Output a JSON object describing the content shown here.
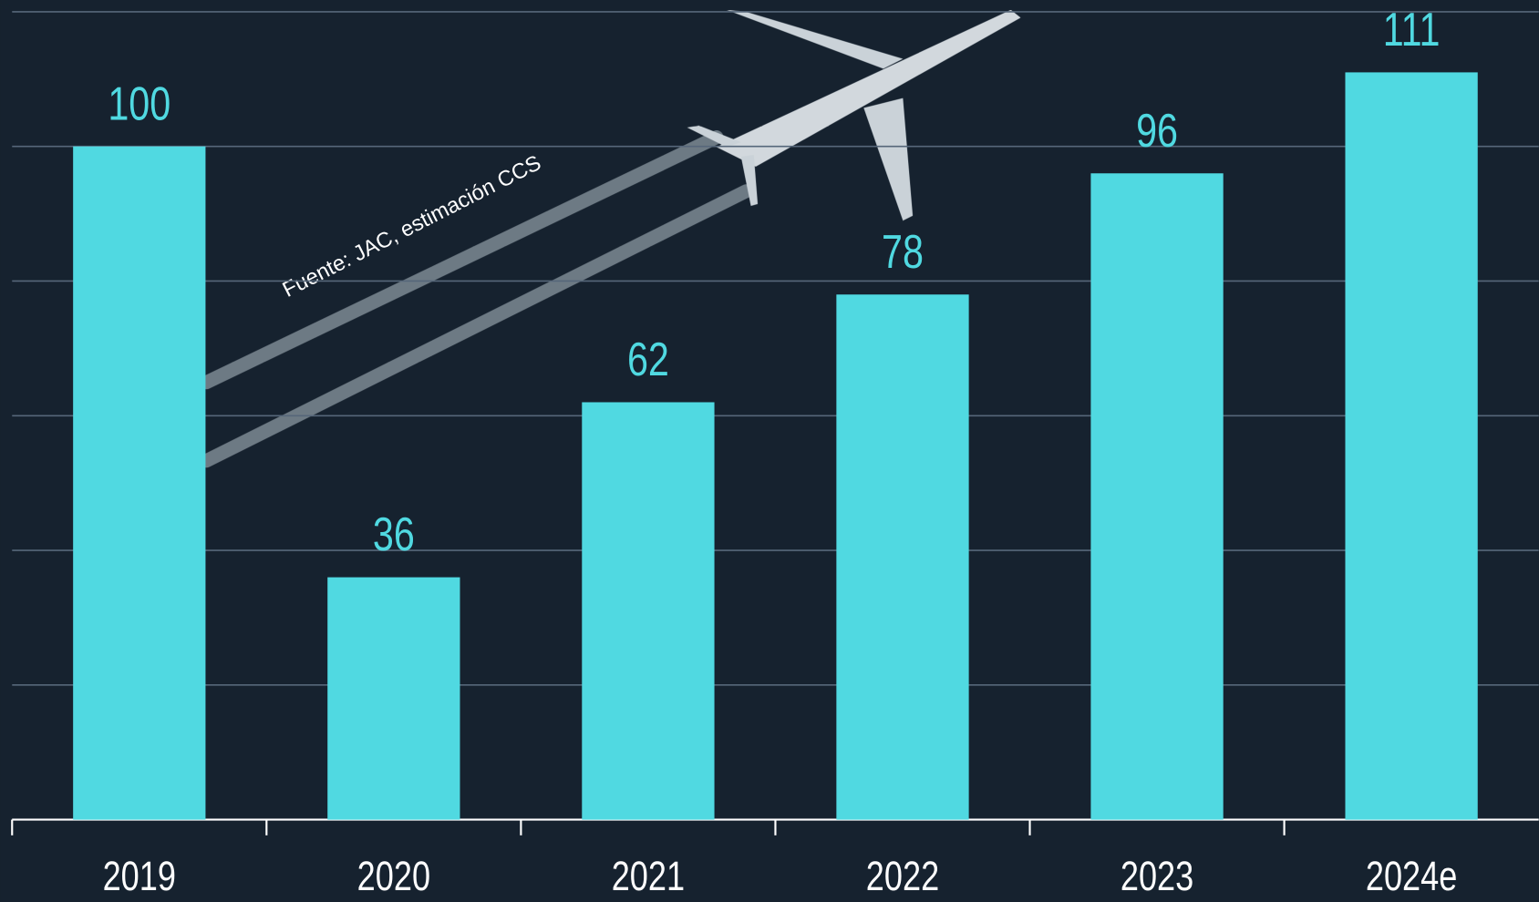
{
  "chart_data": {
    "type": "bar",
    "annotation": "Fuente: JAC, estimación CCS",
    "categories": [
      "2019",
      "2020",
      "2021",
      "2022",
      "2023",
      "2024e"
    ],
    "values": [
      100,
      36,
      62,
      78,
      96,
      111
    ],
    "color": "#50d9e1",
    "ylim": [
      0,
      120
    ],
    "yticks": [
      0,
      20,
      40,
      60,
      80,
      100,
      120
    ],
    "grid": true
  }
}
